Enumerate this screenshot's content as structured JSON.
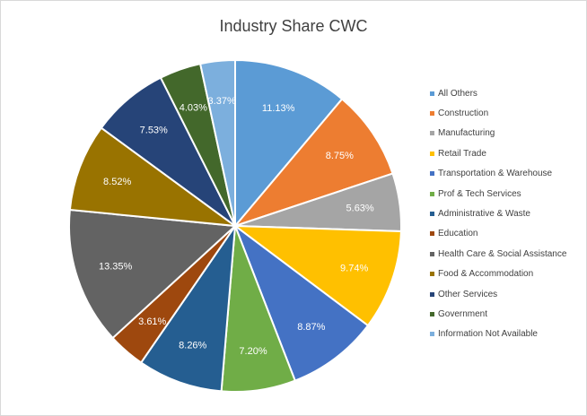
{
  "chart_data": {
    "type": "pie",
    "title": "Industry Share CWC",
    "categories": [
      "All Others",
      "Construction",
      "Manufacturing",
      "Retail Trade",
      "Transportation & Warehouse",
      "Prof & Tech Services",
      "Administrative & Waste",
      "Education",
      "Health Care & Social Assistance",
      "Food & Accommodation",
      "Other Services",
      "Government",
      "Information Not Available"
    ],
    "values": [
      11.13,
      8.75,
      5.63,
      9.74,
      8.87,
      7.2,
      8.26,
      3.61,
      13.35,
      8.52,
      7.53,
      4.03,
      3.37
    ],
    "data_labels": [
      "11.13%",
      "8.75%",
      "5.63%",
      "9.74%",
      "8.87%",
      "7.20%",
      "8.26%",
      "3.61%",
      "13.35%",
      "8.52%",
      "7.53%",
      "4.03%",
      "3.37%"
    ],
    "colors": [
      "#5b9bd5",
      "#ed7d31",
      "#a5a5a5",
      "#ffc000",
      "#4472c4",
      "#70ad47",
      "#255e91",
      "#9e480e",
      "#636363",
      "#997300",
      "#264478",
      "#43682b",
      "#7cafdd"
    ],
    "legend_position": "right",
    "start_angle": "12 o'clock",
    "direction": "clockwise"
  }
}
